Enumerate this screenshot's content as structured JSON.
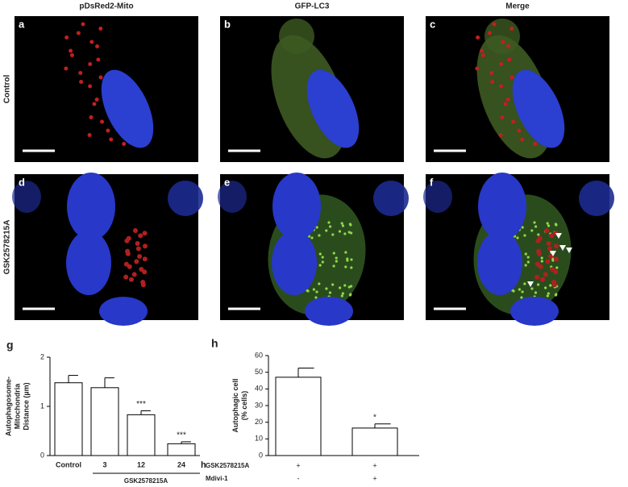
{
  "panels": {
    "columns": [
      "pDsRed2-Mito",
      "GFP-LC3",
      "Merge"
    ],
    "rows": [
      "Control",
      "GSK2578215A"
    ],
    "letters": [
      "a",
      "b",
      "c",
      "d",
      "e",
      "f"
    ]
  },
  "chart_data": [
    {
      "type": "bar",
      "panel_label": "g",
      "y_label": [
        "Autophagosome-",
        "Mitochondria",
        "Distance (µm)"
      ],
      "categories": [
        "Control",
        "3",
        "12",
        "24"
      ],
      "x_unit": "h",
      "x_group_label": "GSK2578215A",
      "values": [
        1.48,
        1.38,
        0.83,
        0.24
      ],
      "errors": [
        0.15,
        0.2,
        0.08,
        0.04
      ],
      "significance": [
        null,
        null,
        "***",
        "***"
      ],
      "color": "#ffffff",
      "ylim": [
        0,
        2
      ],
      "yticks": [
        0,
        1,
        2
      ]
    },
    {
      "type": "bar",
      "panel_label": "h",
      "y_label": [
        "Autophagic cell",
        "(% cells)"
      ],
      "categories": [
        null,
        null
      ],
      "values": [
        47,
        16.5
      ],
      "errors": [
        5.5,
        2.5
      ],
      "significance": [
        null,
        "*"
      ],
      "color": "#ffffff",
      "ylim": [
        0,
        60
      ],
      "yticks": [
        0,
        10,
        20,
        30,
        40,
        50,
        60
      ],
      "conditions": [
        {
          "name": "GSK2578215A",
          "marks": [
            "+",
            "+"
          ]
        },
        {
          "name": "Mdivi-1",
          "marks": [
            "-",
            "+"
          ]
        }
      ]
    }
  ]
}
